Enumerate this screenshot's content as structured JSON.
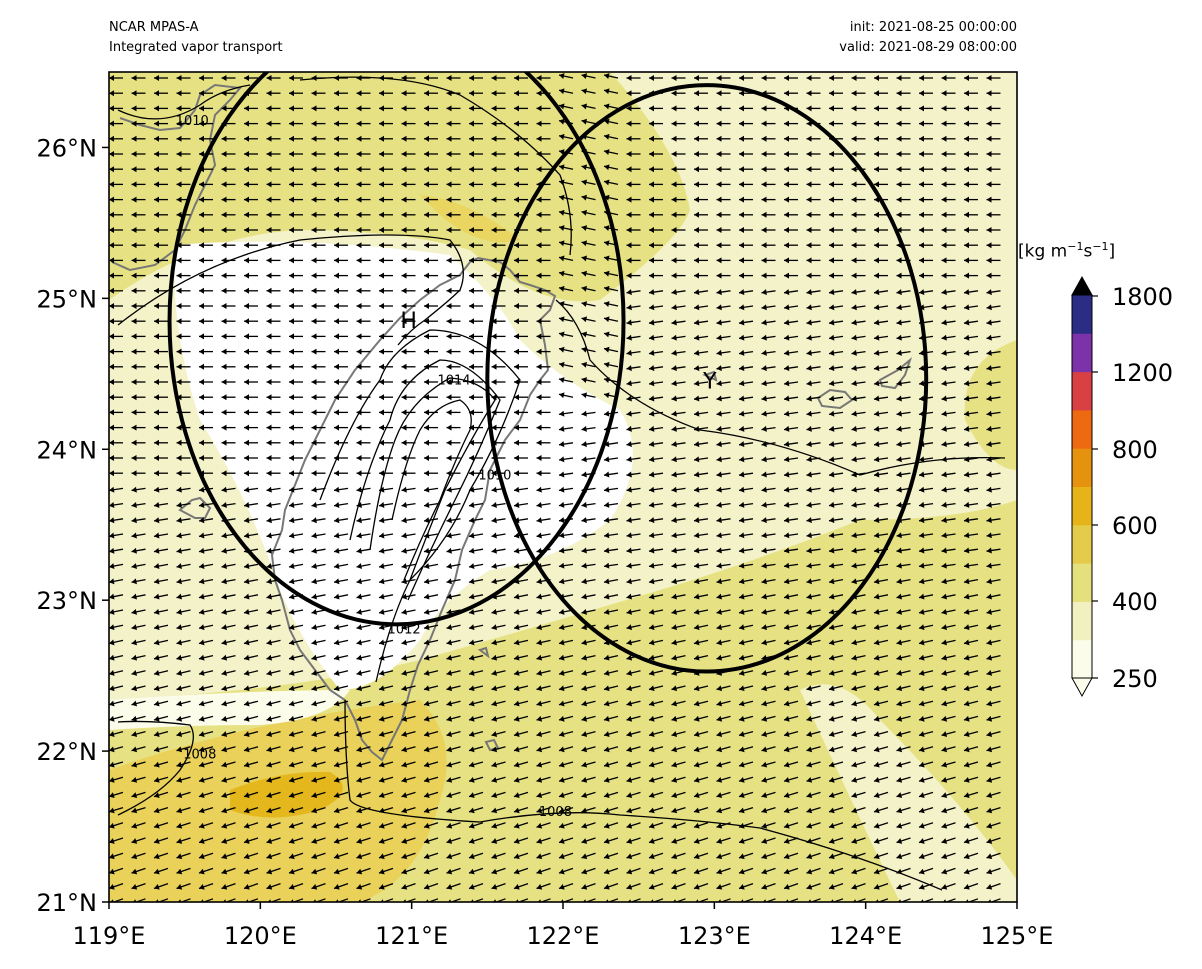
{
  "header": {
    "left_line1": "NCAR MPAS-A",
    "left_line2": "Integrated vapor transport",
    "right_line1": "init: 2021-08-25 00:00:00",
    "right_line2": "valid: 2021-08-29 08:00:00"
  },
  "map": {
    "lon_range": [
      119,
      125
    ],
    "lat_range": [
      21,
      26.5
    ],
    "x_ticks": [
      "119°E",
      "120°E",
      "121°E",
      "122°E",
      "123°E",
      "124°E",
      "125°E"
    ],
    "y_ticks": [
      "21°N",
      "22°N",
      "23°N",
      "24°N",
      "25°N",
      "26°N"
    ],
    "markers": [
      {
        "label": "H",
        "lon": 120.98,
        "lat": 24.87
      },
      {
        "label": "Y",
        "lon": 122.97,
        "lat": 24.47
      }
    ],
    "circles": [
      {
        "center_lon": 120.9,
        "center_lat": 24.85,
        "radius_deg": 1.5
      },
      {
        "center_lon": 122.95,
        "center_lat": 24.47,
        "radius_deg": 1.45
      }
    ],
    "contour_labels": [
      {
        "text": "1010",
        "lon": 119.55,
        "lat": 26.15
      },
      {
        "text": "1014",
        "lon": 121.28,
        "lat": 24.43
      },
      {
        "text": "1010",
        "lon": 121.55,
        "lat": 23.8
      },
      {
        "text": "1012",
        "lon": 120.95,
        "lat": 22.78
      },
      {
        "text": "1008",
        "lon": 119.6,
        "lat": 21.95
      },
      {
        "text": "1008",
        "lon": 121.95,
        "lat": 21.57
      }
    ]
  },
  "colorbar": {
    "units_base": "[kg m",
    "units_exp1": "−1",
    "units_mid": "s",
    "units_exp2": "−1",
    "units_end": "]",
    "tick_labels": [
      "250",
      "400",
      "600",
      "800",
      "1200",
      "1800"
    ],
    "colors": [
      "#fcfceb",
      "#f2f0c0",
      "#e4e07c",
      "#e5cb4a",
      "#e6b418",
      "#e5930e",
      "#ee6a10",
      "#d94044",
      "#7c32a8",
      "#2b2d84"
    ],
    "extend_max_color": "#000000"
  },
  "chart_data": {
    "type": "heatmap",
    "title": "Integrated vapor transport",
    "xlabel": "",
    "ylabel": "",
    "xlim": [
      119,
      125
    ],
    "ylim": [
      21,
      26.5
    ],
    "levels": [
      250,
      300,
      400,
      500,
      600,
      700,
      800,
      1000,
      1200,
      1500,
      1800
    ],
    "pressure_contours_hPa": [
      1008,
      1010,
      1012,
      1014
    ]
  }
}
